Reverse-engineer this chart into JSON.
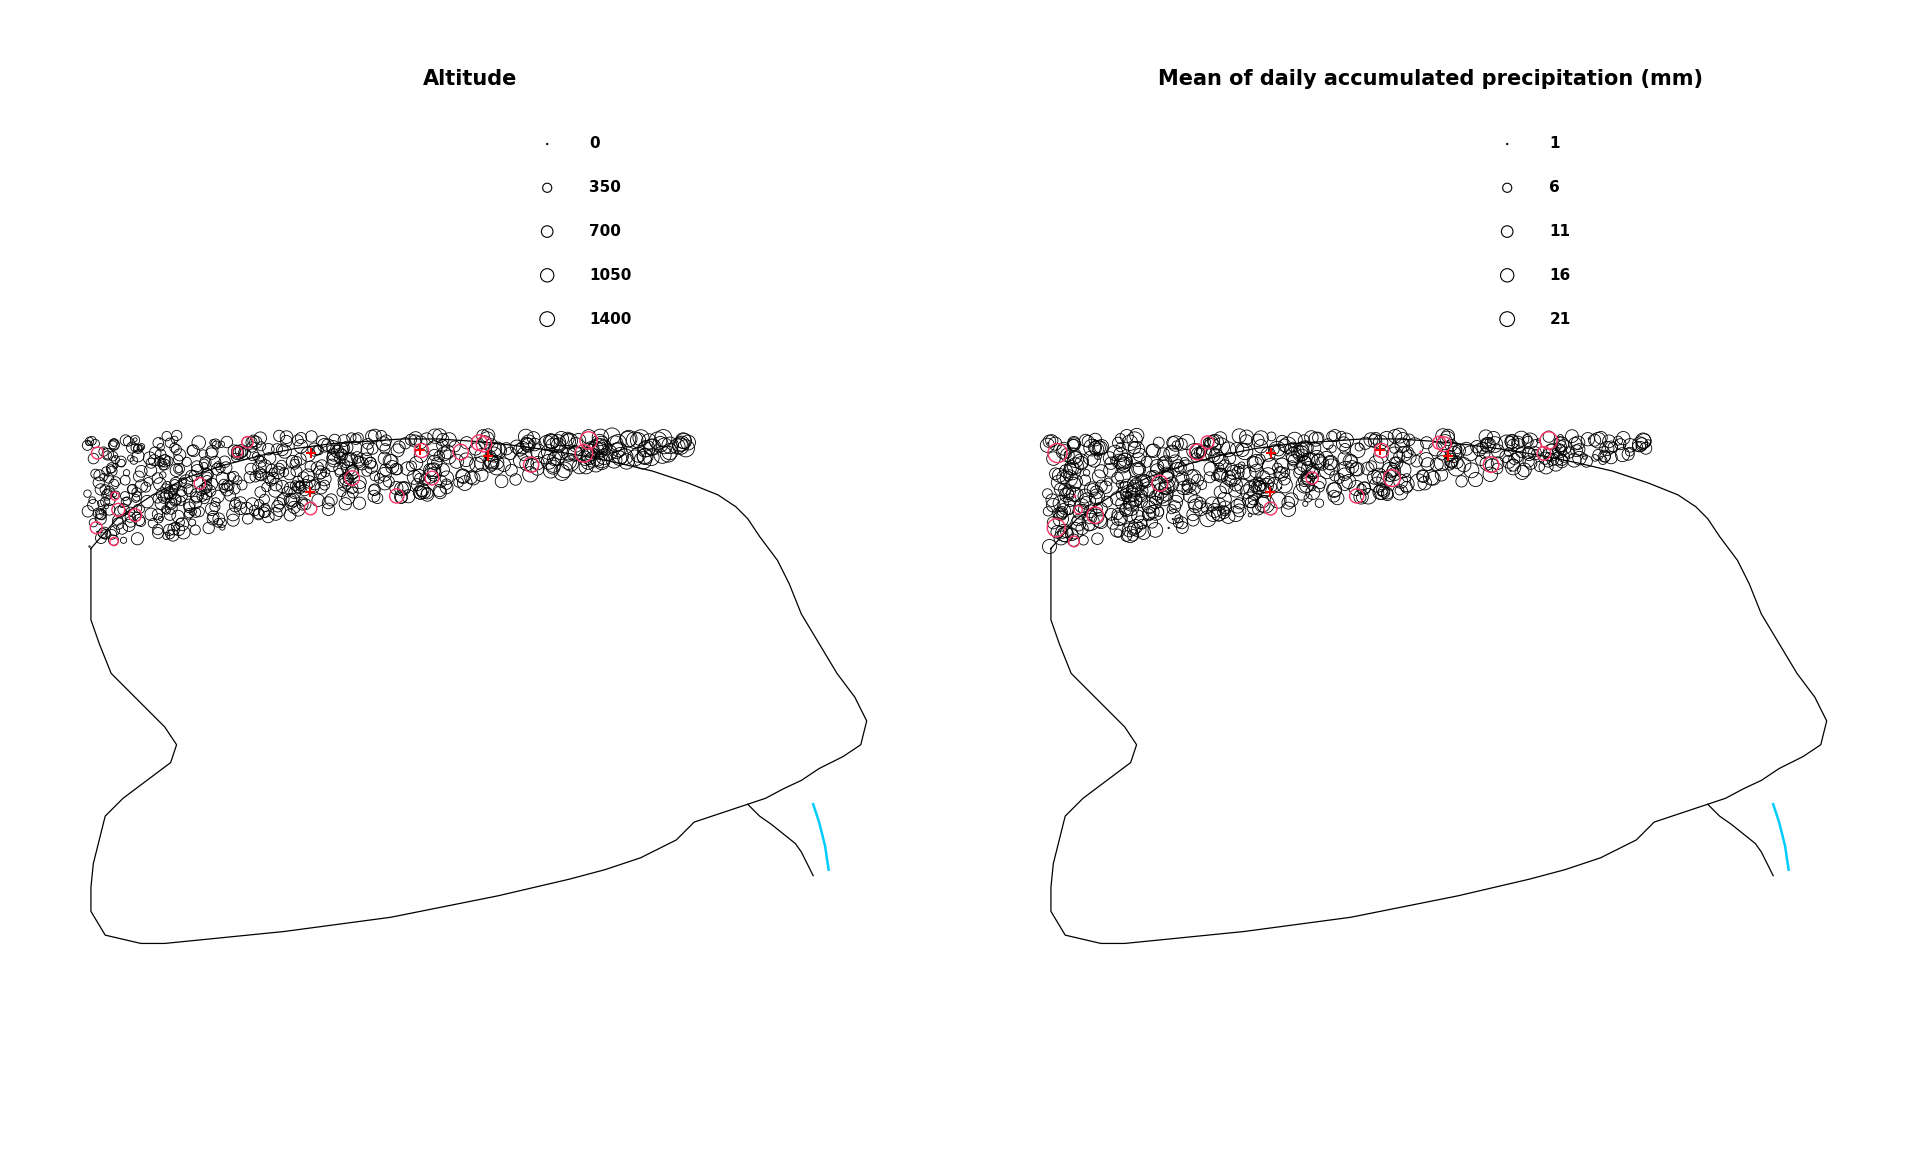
{
  "title_left": "Altitude",
  "title_right": "Mean of daily accumulated precipitation (mm)",
  "legend_altitude_values": [
    0,
    350,
    700,
    1050,
    1400
  ],
  "legend_precip_values": [
    1,
    6,
    11,
    16,
    21
  ],
  "background_color": "#ffffff",
  "station_edgecolor": "#000000",
  "missing_edgecolor": "#ff3366",
  "highlight_color": "#ff0000",
  "river_color": "#00ccff",
  "title_fontsize": 15,
  "legend_fontsize": 11,
  "n_stations": 700,
  "n_missing": 20,
  "n_highlight": 4,
  "alt_size_min": 1,
  "alt_size_max": 200,
  "precip_size_min": 1,
  "precip_size_max": 200,
  "alt_max": 1400,
  "precip_min": 1,
  "precip_max": 21
}
